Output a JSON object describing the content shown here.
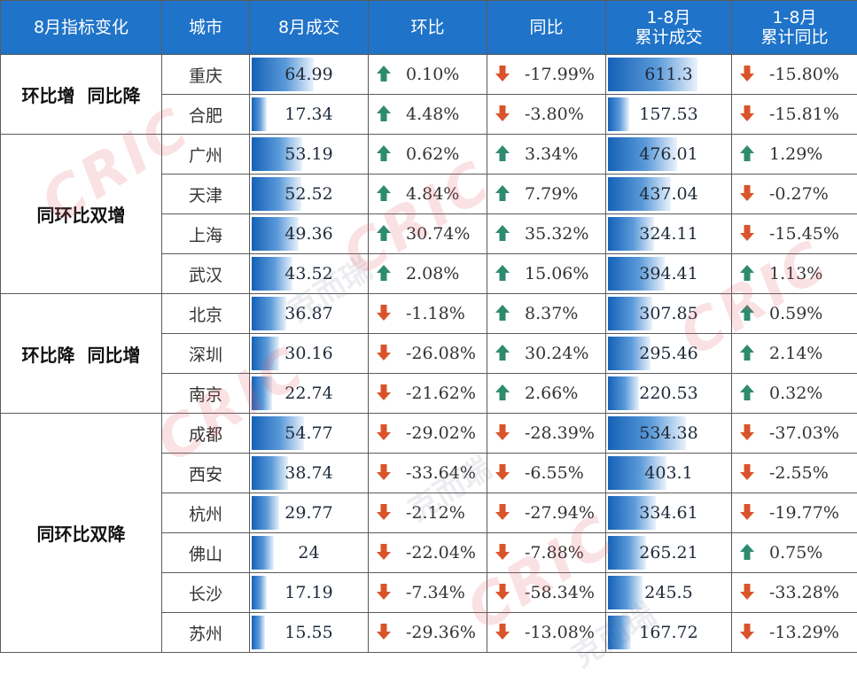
{
  "header": {
    "col_indicator": "8月指标变化",
    "col_city": "城市",
    "col_aug": "8月成交",
    "col_mom": "环比",
    "col_yoy": "同比",
    "col_ytd_line1": "1-8月",
    "col_ytd_line2": "累计成交",
    "col_ytdyoy_line1": "1-8月",
    "col_ytdyoy_line2": "累计同比"
  },
  "colors": {
    "up": "#2e8b6f",
    "down": "#d9542a",
    "header": "#1f73c8"
  },
  "groups": [
    {
      "label": "环比增  同比降",
      "rows": [
        {
          "city": "重庆",
          "aug": "64.99",
          "mom": "0.10%",
          "mom_dir": "up",
          "yoy": "-17.99%",
          "yoy_dir": "down",
          "ytd": "611.3",
          "ytd_yoy": "-15.80%",
          "ytd_yoy_dir": "down"
        },
        {
          "city": "合肥",
          "aug": "17.34",
          "mom": "4.48%",
          "mom_dir": "up",
          "yoy": "-3.80%",
          "yoy_dir": "down",
          "ytd": "157.53",
          "ytd_yoy": "-15.81%",
          "ytd_yoy_dir": "down"
        }
      ]
    },
    {
      "label": "同环比双增",
      "rows": [
        {
          "city": "广州",
          "aug": "53.19",
          "mom": "0.62%",
          "mom_dir": "up",
          "yoy": "3.34%",
          "yoy_dir": "up",
          "ytd": "476.01",
          "ytd_yoy": "1.29%",
          "ytd_yoy_dir": "up"
        },
        {
          "city": "天津",
          "aug": "52.52",
          "mom": "4.84%",
          "mom_dir": "up",
          "yoy": "7.79%",
          "yoy_dir": "up",
          "ytd": "437.04",
          "ytd_yoy": "-0.27%",
          "ytd_yoy_dir": "down"
        },
        {
          "city": "上海",
          "aug": "49.36",
          "mom": "30.74%",
          "mom_dir": "up",
          "yoy": "35.32%",
          "yoy_dir": "up",
          "ytd": "324.11",
          "ytd_yoy": "-15.45%",
          "ytd_yoy_dir": "down"
        },
        {
          "city": "武汉",
          "aug": "43.52",
          "mom": "2.08%",
          "mom_dir": "up",
          "yoy": "15.06%",
          "yoy_dir": "up",
          "ytd": "394.41",
          "ytd_yoy": "1.13%",
          "ytd_yoy_dir": "up"
        }
      ]
    },
    {
      "label": "环比降  同比增",
      "rows": [
        {
          "city": "北京",
          "aug": "36.87",
          "mom": "-1.18%",
          "mom_dir": "down",
          "yoy": "8.37%",
          "yoy_dir": "up",
          "ytd": "307.85",
          "ytd_yoy": "0.59%",
          "ytd_yoy_dir": "up"
        },
        {
          "city": "深圳",
          "aug": "30.16",
          "mom": "-26.08%",
          "mom_dir": "down",
          "yoy": "30.24%",
          "yoy_dir": "up",
          "ytd": "295.46",
          "ytd_yoy": "2.14%",
          "ytd_yoy_dir": "up"
        },
        {
          "city": "南京",
          "aug": "22.74",
          "mom": "-21.62%",
          "mom_dir": "down",
          "yoy": "2.66%",
          "yoy_dir": "up",
          "ytd": "220.53",
          "ytd_yoy": "0.32%",
          "ytd_yoy_dir": "up"
        }
      ]
    },
    {
      "label": "同环比双降",
      "rows": [
        {
          "city": "成都",
          "aug": "54.77",
          "mom": "-29.02%",
          "mom_dir": "down",
          "yoy": "-28.39%",
          "yoy_dir": "down",
          "ytd": "534.38",
          "ytd_yoy": "-37.03%",
          "ytd_yoy_dir": "down"
        },
        {
          "city": "西安",
          "aug": "38.74",
          "mom": "-33.64%",
          "mom_dir": "down",
          "yoy": "-6.55%",
          "yoy_dir": "down",
          "ytd": "403.1",
          "ytd_yoy": "-2.55%",
          "ytd_yoy_dir": "down"
        },
        {
          "city": "杭州",
          "aug": "29.77",
          "mom": "-2.12%",
          "mom_dir": "down",
          "yoy": "-27.94%",
          "yoy_dir": "down",
          "ytd": "334.61",
          "ytd_yoy": "-19.77%",
          "ytd_yoy_dir": "down"
        },
        {
          "city": "佛山",
          "aug": "24",
          "mom": "-22.04%",
          "mom_dir": "down",
          "yoy": "-7.88%",
          "yoy_dir": "down",
          "ytd": "265.21",
          "ytd_yoy": "0.75%",
          "ytd_yoy_dir": "up"
        },
        {
          "city": "长沙",
          "aug": "17.19",
          "mom": "-7.34%",
          "mom_dir": "down",
          "yoy": "-58.34%",
          "yoy_dir": "down",
          "ytd": "245.5",
          "ytd_yoy": "-33.28%",
          "ytd_yoy_dir": "down"
        },
        {
          "city": "苏州",
          "aug": "15.55",
          "mom": "-29.36%",
          "mom_dir": "down",
          "yoy": "-13.08%",
          "yoy_dir": "down",
          "ytd": "167.72",
          "ytd_yoy": "-13.29%",
          "ytd_yoy_dir": "down"
        }
      ]
    }
  ],
  "watermark": {
    "latin": "CRIC",
    "cn": "克而瑞"
  }
}
